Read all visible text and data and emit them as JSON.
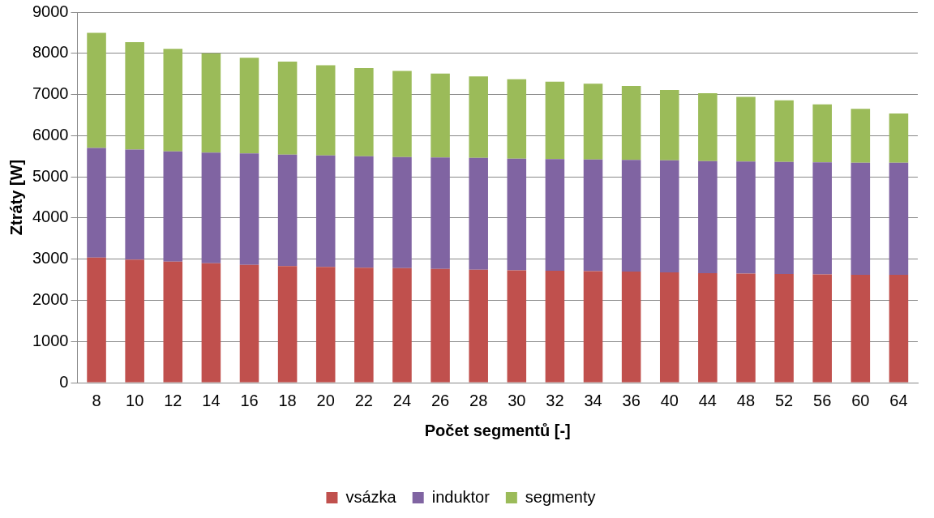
{
  "chart_data": {
    "type": "bar",
    "stacked": true,
    "xlabel": "Počet segmentů [-]",
    "ylabel": "Ztráty [W]",
    "categories": [
      "8",
      "10",
      "12",
      "14",
      "16",
      "18",
      "20",
      "22",
      "24",
      "26",
      "28",
      "30",
      "32",
      "34",
      "36",
      "40",
      "44",
      "48",
      "52",
      "56",
      "60",
      "64"
    ],
    "series": [
      {
        "name": "vsázka",
        "color": "#c0504d",
        "values": [
          3040,
          2990,
          2940,
          2900,
          2860,
          2830,
          2810,
          2790,
          2780,
          2760,
          2740,
          2730,
          2720,
          2710,
          2700,
          2680,
          2660,
          2650,
          2640,
          2630,
          2620,
          2620
        ]
      },
      {
        "name": "induktor",
        "color": "#8064a2",
        "values": [
          2660,
          2670,
          2680,
          2690,
          2710,
          2710,
          2710,
          2710,
          2700,
          2710,
          2720,
          2710,
          2710,
          2710,
          2710,
          2720,
          2720,
          2720,
          2720,
          2720,
          2720,
          2720
        ]
      },
      {
        "name": "segmenty",
        "color": "#9bbb59",
        "values": [
          2800,
          2610,
          2490,
          2410,
          2320,
          2260,
          2190,
          2140,
          2090,
          2040,
          1980,
          1930,
          1880,
          1840,
          1800,
          1710,
          1650,
          1570,
          1500,
          1410,
          1310,
          1200
        ]
      }
    ],
    "ylim": [
      0,
      9000
    ],
    "yticks": [
      0,
      1000,
      2000,
      3000,
      4000,
      5000,
      6000,
      7000,
      8000,
      9000
    ],
    "grid": "y",
    "legend": "bottom"
  }
}
